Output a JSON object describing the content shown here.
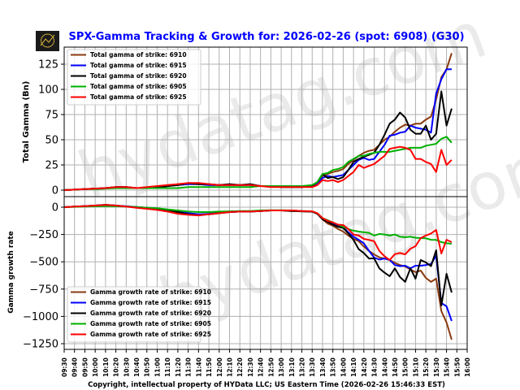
{
  "title": "SPX-Gamma Tracking & Growth for: 2026-02-26 (spot: 6908) (G30)",
  "title_color": "#0000ff",
  "footer": "Copyright, intellectual property of HYData LLC; US Eastern Time (2026-02-26 15:46:33 EST)",
  "watermark": "hydatag.com",
  "logo_text": "HYDATAG",
  "chart_data": [
    {
      "type": "line",
      "ylabel": "Total Gamma (Bn)",
      "ylim": [
        -12,
        140
      ],
      "yticks": [
        0,
        25,
        50,
        75,
        100,
        125
      ],
      "grid": true,
      "legend_position": "top-left",
      "x": [
        "09:30",
        "09:40",
        "09:50",
        "10:00",
        "10:10",
        "10:20",
        "10:30",
        "10:40",
        "10:50",
        "11:00",
        "11:10",
        "11:20",
        "11:30",
        "11:40",
        "11:50",
        "12:00",
        "12:10",
        "12:20",
        "12:30",
        "12:40",
        "12:50",
        "13:00",
        "13:10",
        "13:20",
        "13:30",
        "13:35",
        "13:40",
        "13:45",
        "13:50",
        "13:55",
        "14:00",
        "14:05",
        "14:10",
        "14:15",
        "14:20",
        "14:25",
        "14:30",
        "14:35",
        "14:40",
        "14:45",
        "14:50",
        "14:55",
        "15:00",
        "15:05",
        "15:10",
        "15:15",
        "15:20",
        "15:25",
        "15:30",
        "15:35",
        "15:40",
        "15:45"
      ],
      "series": [
        {
          "name": "Total gamma of strike: 6910",
          "color": "#8b3a0f",
          "values": [
            0,
            0.5,
            1,
            1.5,
            2,
            3,
            3,
            2,
            2,
            3,
            4,
            5,
            6,
            6,
            5,
            5,
            5,
            5,
            5,
            4,
            4,
            3,
            3,
            3,
            4,
            8,
            14,
            16,
            18,
            19,
            21,
            26,
            30,
            34,
            37,
            39,
            40,
            45,
            50,
            53,
            58,
            62,
            65,
            64,
            66,
            66,
            70,
            73,
            90,
            112,
            120,
            136
          ]
        },
        {
          "name": "Total gamma of strike: 6915",
          "color": "#0000ff",
          "values": [
            0,
            0.5,
            1,
            1.5,
            2,
            3,
            3,
            2,
            2,
            3,
            4,
            5,
            6,
            6,
            5,
            5,
            5,
            5,
            5,
            4,
            4,
            3,
            3,
            3,
            4,
            7,
            12,
            14,
            13,
            14,
            15,
            20,
            25,
            30,
            32,
            30,
            31,
            38,
            45,
            54,
            55,
            57,
            58,
            64,
            62,
            61,
            60,
            57,
            96,
            110,
            120,
            120
          ]
        },
        {
          "name": "Total gamma of strike: 6920",
          "color": "#000000",
          "values": [
            0,
            0.5,
            1,
            1.5,
            2,
            3,
            3,
            2,
            2,
            3,
            4,
            5,
            7,
            6,
            6,
            5,
            6,
            5,
            6,
            4,
            4,
            3,
            3,
            3,
            4,
            8,
            16,
            12,
            13,
            11,
            13,
            20,
            28,
            31,
            33,
            35,
            37,
            45,
            55,
            66,
            70,
            77,
            72,
            60,
            56,
            56,
            64,
            50,
            56,
            98,
            64,
            81
          ]
        },
        {
          "name": "Total gamma of strike: 6905",
          "color": "#00b000",
          "values": [
            0,
            0.5,
            1,
            1,
            1.5,
            2,
            2,
            2,
            2,
            2,
            2,
            2,
            3,
            3,
            3,
            3,
            3,
            3,
            3,
            4,
            4,
            4,
            4,
            4,
            5,
            8,
            16,
            17,
            20,
            21,
            23,
            28,
            31,
            34,
            34,
            36,
            37,
            38,
            38,
            38,
            39,
            40,
            41,
            42,
            42,
            42,
            44,
            45,
            46,
            51,
            53,
            47
          ]
        },
        {
          "name": "Total gamma of strike: 6925",
          "color": "#ff0000",
          "values": [
            0,
            0.5,
            1,
            1.5,
            2,
            3,
            3,
            2,
            3,
            4,
            5,
            6,
            7,
            7,
            6,
            5,
            5,
            5,
            5,
            4,
            3,
            3,
            3,
            3,
            3,
            5,
            10,
            9,
            10,
            8,
            10,
            14,
            18,
            25,
            22,
            24,
            26,
            30,
            34,
            41,
            42,
            43,
            42,
            40,
            31,
            31,
            28,
            26,
            18,
            40,
            25,
            30
          ]
        }
      ]
    },
    {
      "type": "line",
      "ylabel": "Gamma growth rate",
      "ylim": [
        -1300,
        90
      ],
      "yticks": [
        0,
        -250,
        -500,
        -750,
        -1000,
        -1250
      ],
      "grid": true,
      "legend_position": "bottom-left",
      "x_tick_labels": [
        "09:30",
        "09:40",
        "09:50",
        "10:00",
        "10:10",
        "10:20",
        "10:30",
        "10:40",
        "10:50",
        "11:00",
        "11:10",
        "11:20",
        "11:30",
        "11:40",
        "11:50",
        "12:00",
        "12:10",
        "12:20",
        "12:30",
        "12:40",
        "12:50",
        "13:00",
        "13:10",
        "13:20",
        "13:30",
        "13:40",
        "13:50",
        "14:00",
        "14:10",
        "14:20",
        "14:30",
        "14:40",
        "14:50",
        "15:00",
        "15:10",
        "15:20",
        "15:30",
        "15:40",
        "15:50",
        "16:00"
      ],
      "series": [
        {
          "name": "Gamma growth rate of strike: 6910",
          "color": "#8b3a0f",
          "values": [
            0,
            5,
            10,
            15,
            20,
            15,
            5,
            0,
            -5,
            -15,
            -25,
            -45,
            -60,
            -70,
            -65,
            -55,
            -45,
            -40,
            -40,
            -35,
            -30,
            -30,
            -35,
            -38,
            -42,
            -60,
            -110,
            -150,
            -170,
            -200,
            -223,
            -260,
            -290,
            -312,
            -360,
            -400,
            -432,
            -460,
            -470,
            -484,
            -510,
            -530,
            -543,
            -570,
            -595,
            -580,
            -647,
            -684,
            -655,
            -952,
            -1056,
            -1213
          ]
        },
        {
          "name": "Gamma growth rate of strike: 6915",
          "color": "#0000ff",
          "values": [
            0,
            5,
            10,
            15,
            20,
            15,
            8,
            2,
            -5,
            -15,
            -25,
            -40,
            -55,
            -65,
            -60,
            -50,
            -45,
            -40,
            -40,
            -35,
            -30,
            -30,
            -30,
            -35,
            -40,
            -60,
            -105,
            -130,
            -150,
            -170,
            -186,
            -230,
            -270,
            -298,
            -330,
            -400,
            -461,
            -480,
            -470,
            -484,
            -530,
            -540,
            -536,
            -560,
            -536,
            -536,
            -530,
            -520,
            -446,
            -878,
            -908,
            -1042
          ]
        },
        {
          "name": "Gamma growth rate of strike: 6920",
          "color": "#000000",
          "values": [
            0,
            5,
            10,
            15,
            22,
            15,
            5,
            0,
            -5,
            -15,
            -25,
            -45,
            -65,
            -75,
            -65,
            -55,
            -45,
            -40,
            -40,
            -35,
            -30,
            -30,
            -35,
            -38,
            -40,
            -60,
            -110,
            -135,
            -160,
            -180,
            -190,
            -240,
            -300,
            -385,
            -420,
            -470,
            -469,
            -560,
            -600,
            -632,
            -560,
            -640,
            -684,
            -560,
            -655,
            -484,
            -506,
            -540,
            -394,
            -900,
            -610,
            -781
          ]
        },
        {
          "name": "Gamma growth rate of strike: 6905",
          "color": "#00b000",
          "values": [
            0,
            3,
            6,
            8,
            10,
            8,
            5,
            2,
            -5,
            -10,
            -20,
            -30,
            -40,
            -45,
            -45,
            -40,
            -38,
            -35,
            -35,
            -30,
            -28,
            -28,
            -30,
            -35,
            -38,
            -55,
            -100,
            -120,
            -140,
            -160,
            -180,
            -200,
            -215,
            -223,
            -230,
            -235,
            -260,
            -245,
            -250,
            -260,
            -250,
            -270,
            -275,
            -270,
            -280,
            -283,
            -285,
            -298,
            -300,
            -320,
            -330,
            -335
          ]
        },
        {
          "name": "Gamma growth rate of strike: 6925",
          "color": "#ff0000",
          "values": [
            0,
            5,
            10,
            15,
            20,
            15,
            5,
            -5,
            -15,
            -25,
            -40,
            -60,
            -70,
            -75,
            -65,
            -55,
            -45,
            -40,
            -40,
            -35,
            -30,
            -30,
            -30,
            -35,
            -38,
            -55,
            -100,
            -125,
            -140,
            -160,
            -164,
            -200,
            -250,
            -260,
            -290,
            -300,
            -312,
            -400,
            -450,
            -484,
            -430,
            -420,
            -432,
            -380,
            -357,
            -283,
            -260,
            -240,
            -208,
            -424,
            -298,
            -320
          ]
        }
      ]
    }
  ]
}
